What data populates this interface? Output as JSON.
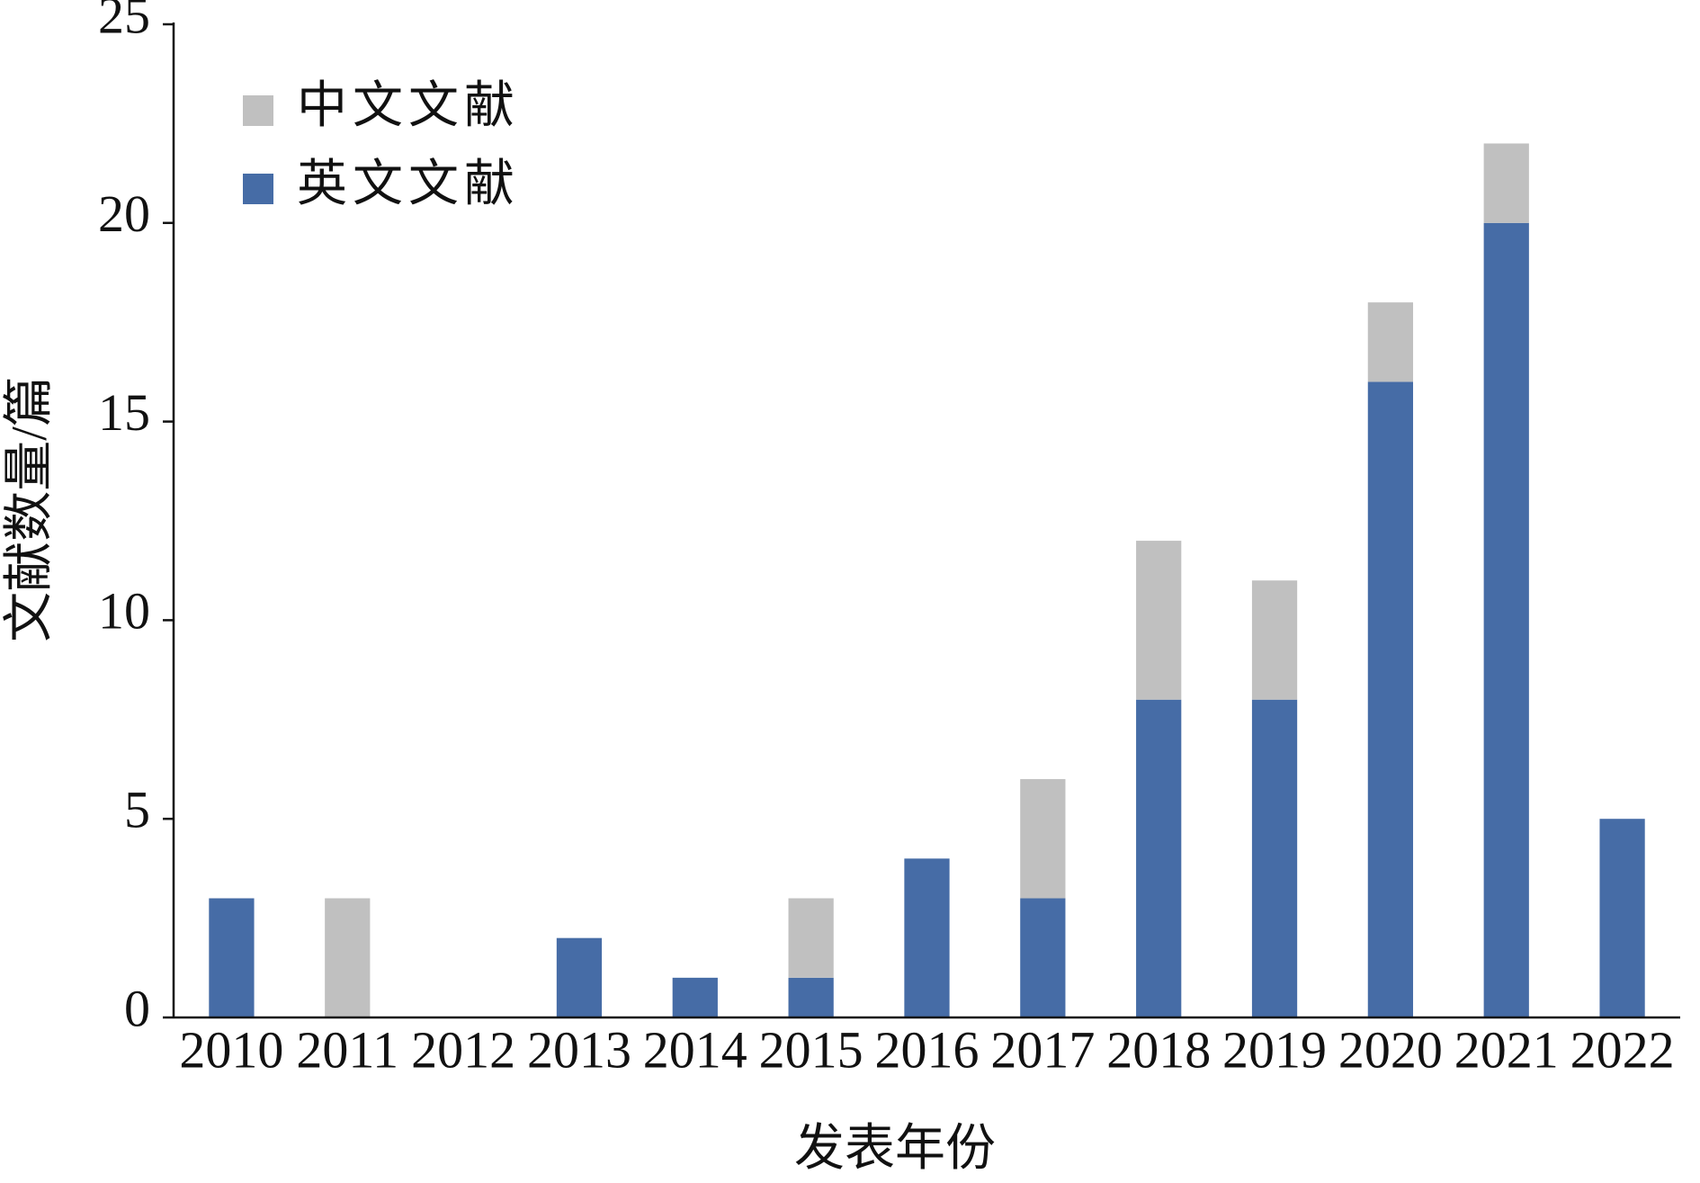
{
  "chart_data": {
    "type": "stacked_bar",
    "x_label": "发表年份",
    "y_label": "文献数量/篇",
    "categories": [
      "2010",
      "2011",
      "2012",
      "2013",
      "2014",
      "2015",
      "2016",
      "2017",
      "2018",
      "2019",
      "2020",
      "2021",
      "2022"
    ],
    "series": [
      {
        "name": "英文文献",
        "color": "#466ca6",
        "values": [
          3,
          0,
          0,
          2,
          1,
          1,
          4,
          3,
          8,
          8,
          16,
          20,
          5
        ]
      },
      {
        "name": "中文文献",
        "color": "#c0c0c0",
        "values": [
          0,
          3,
          0,
          0,
          0,
          2,
          0,
          3,
          4,
          3,
          2,
          2,
          0
        ]
      }
    ],
    "ylim": [
      0,
      25
    ],
    "yticks": [
      0,
      5,
      10,
      15,
      20,
      25
    ],
    "grid": false
  }
}
